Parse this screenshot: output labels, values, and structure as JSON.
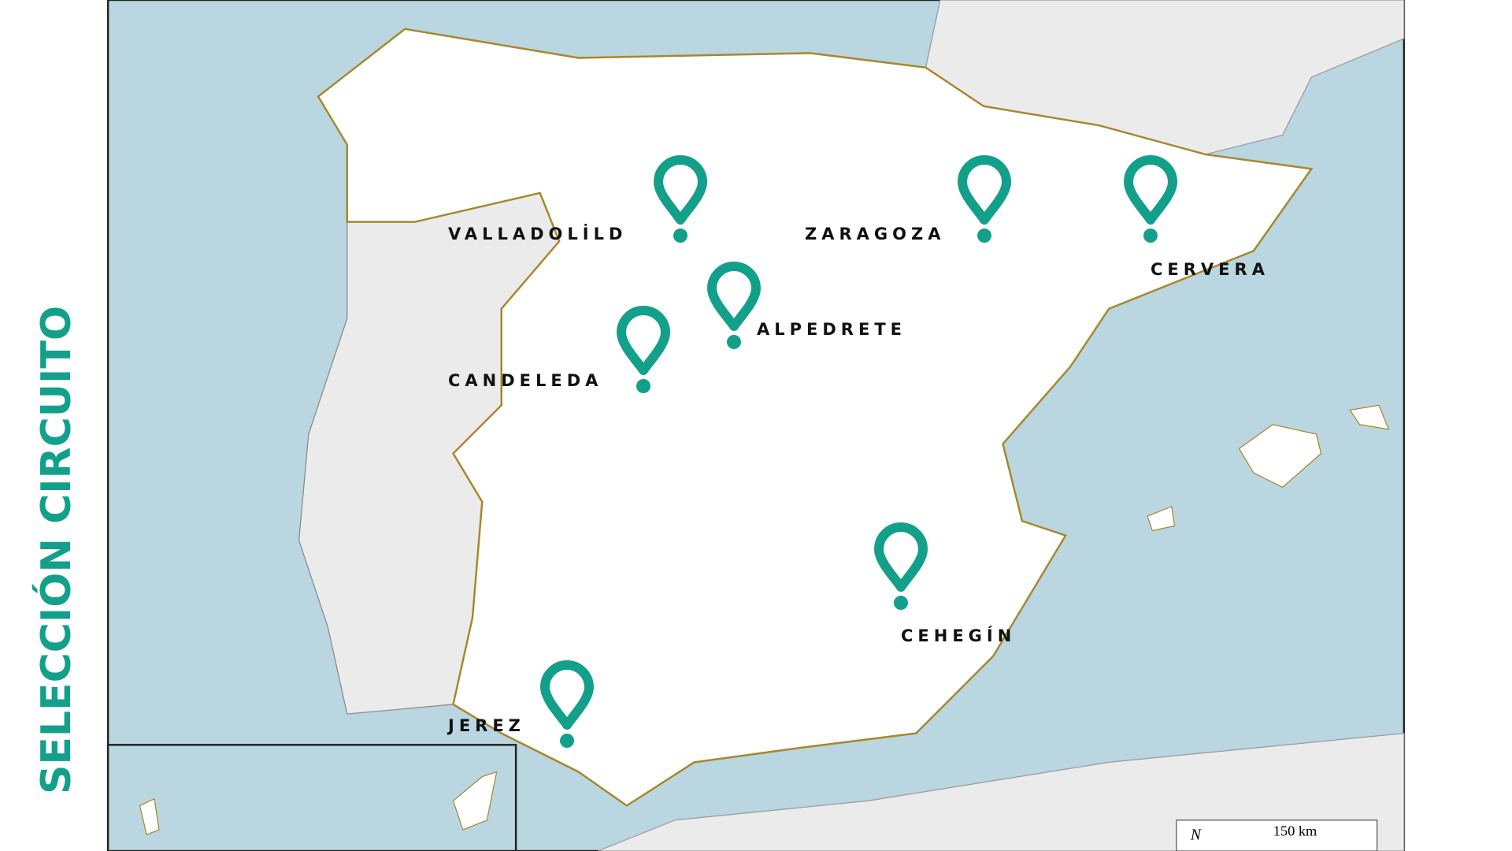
{
  "title": "SELECCIÓN CIRCUITO",
  "locations": [
    {
      "label": "VALLADOLİLD"
    },
    {
      "label": "ZARAGOZA"
    },
    {
      "label": "CERVERA"
    },
    {
      "label": "ALPEDRETE"
    },
    {
      "label": "CANDELEDA"
    },
    {
      "label": "CEHEGÍN"
    },
    {
      "label": "JEREZ"
    }
  ],
  "map": {
    "north": "N",
    "scale_label": "150 km"
  }
}
